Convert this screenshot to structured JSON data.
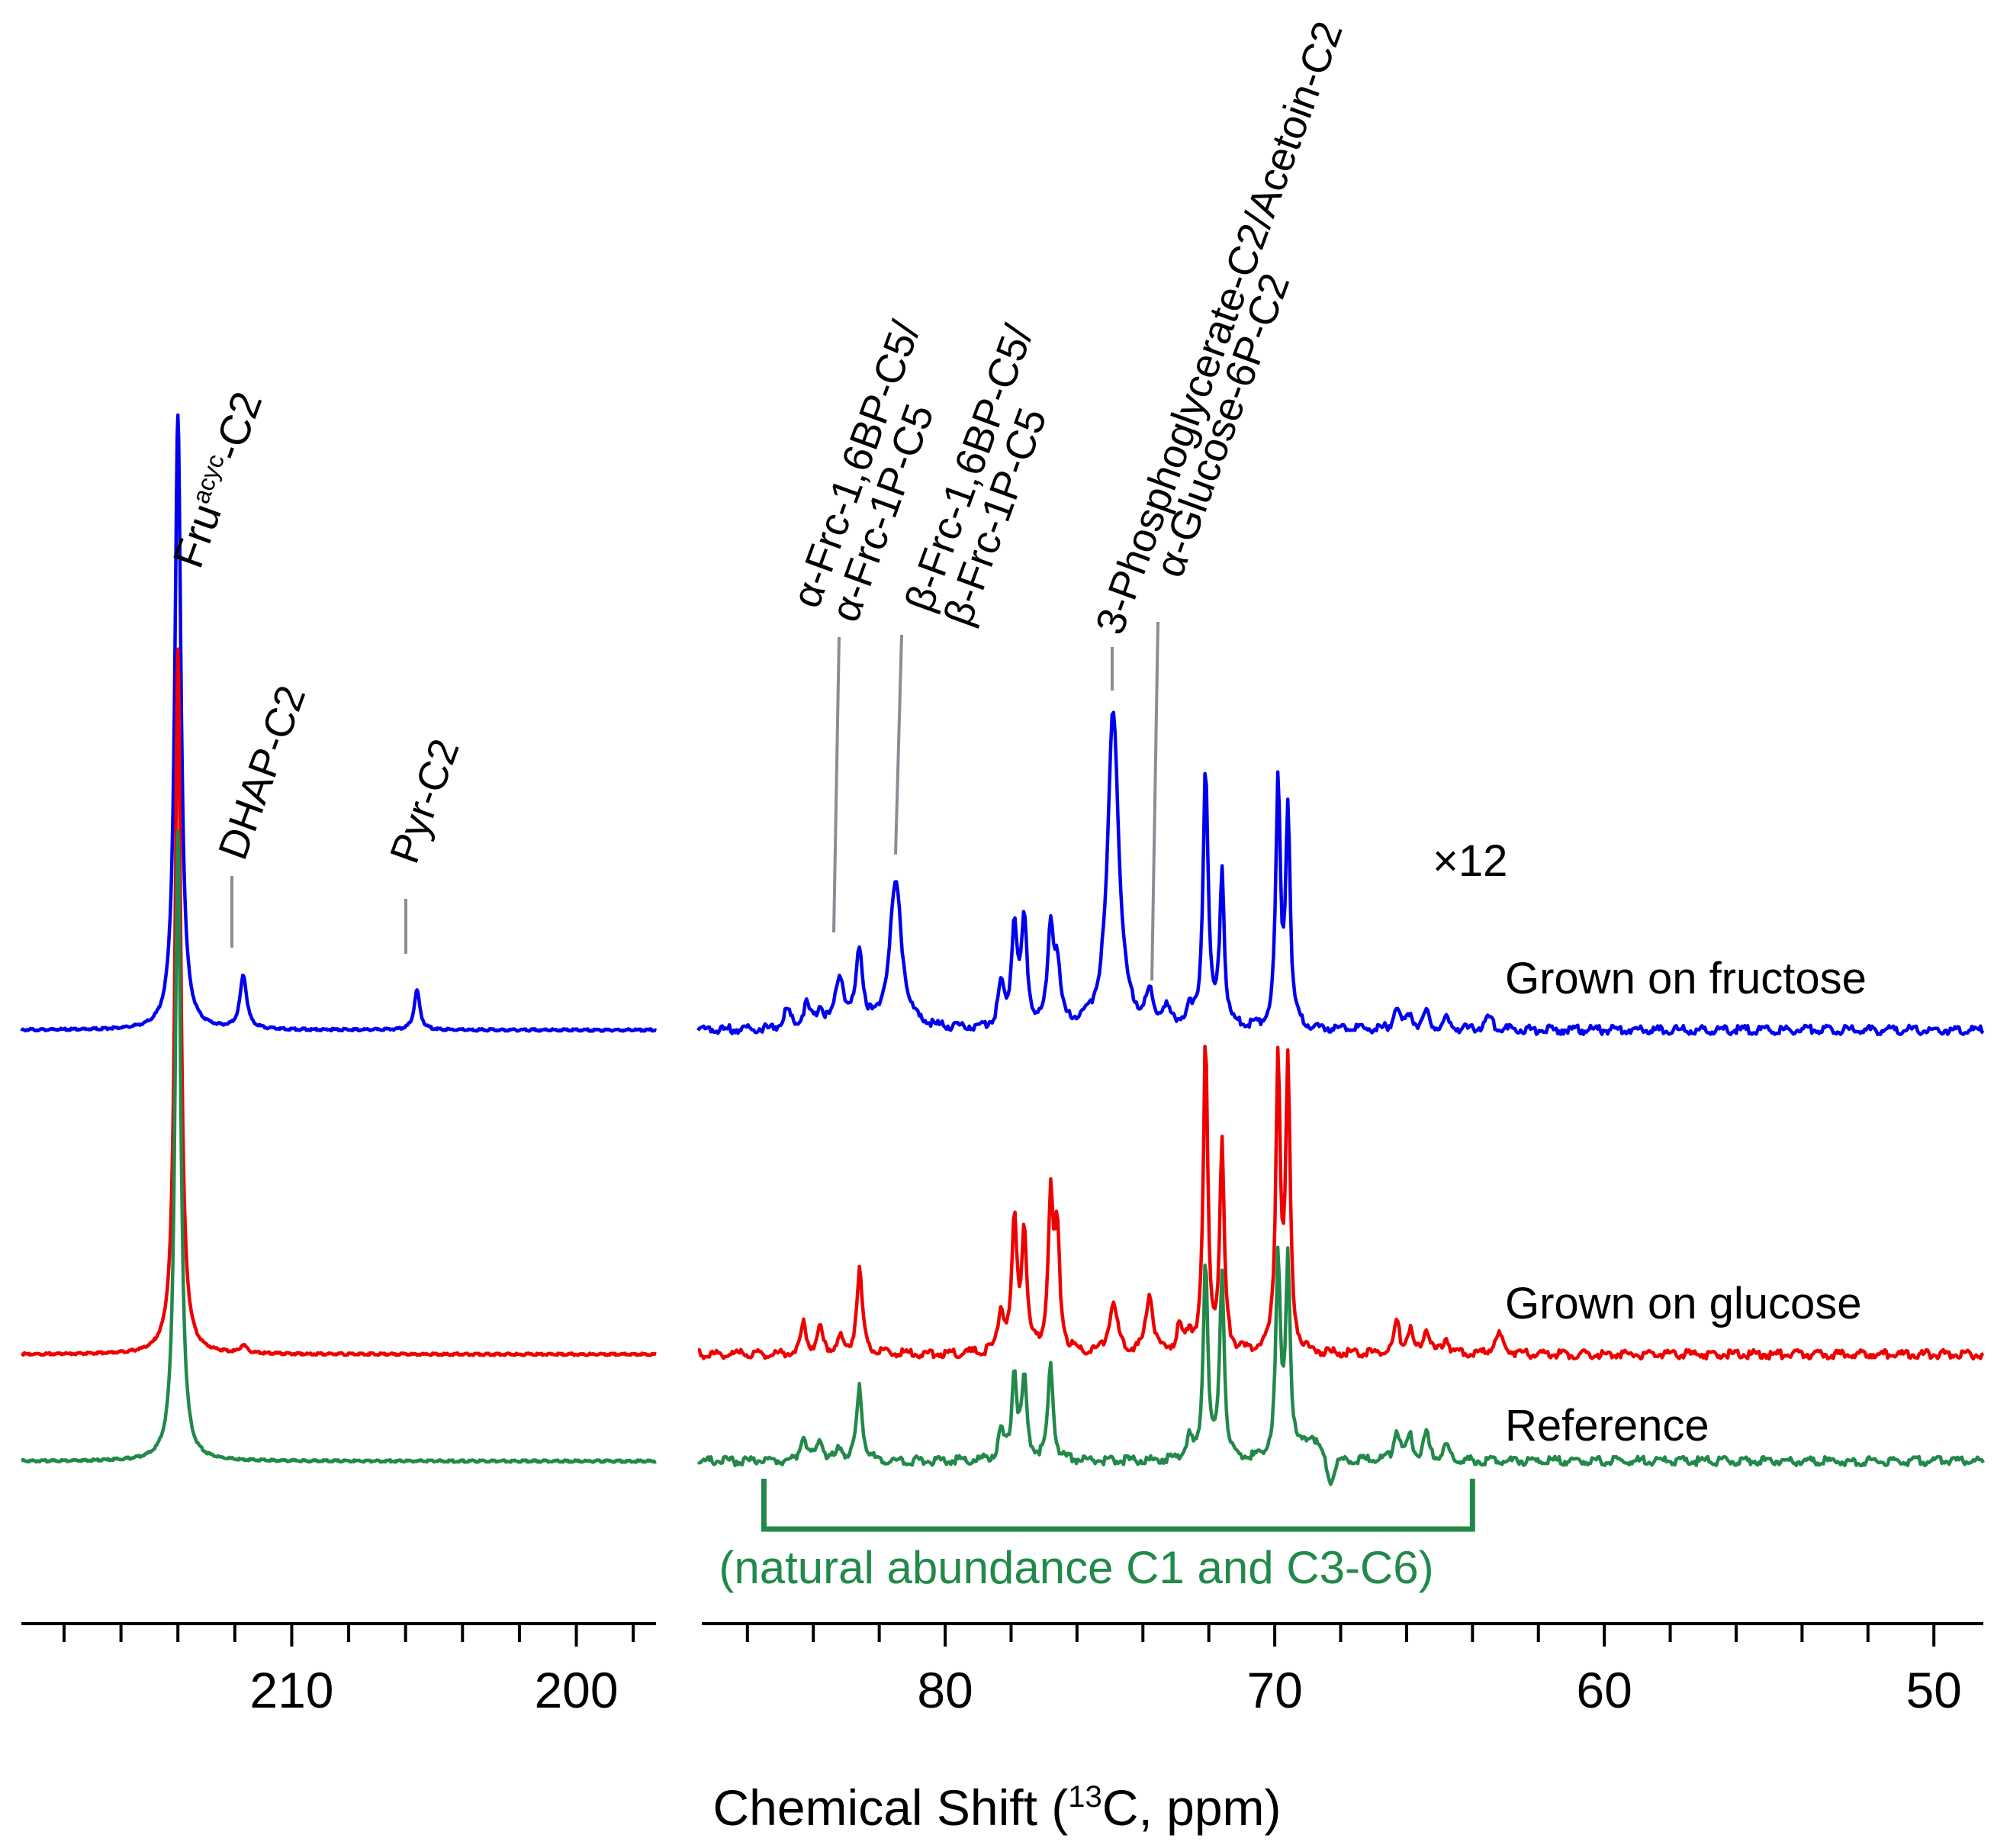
{
  "chart_data": {
    "type": "line",
    "title": "",
    "xlabel": "Chemical Shift",
    "xlabel_parts": {
      "prefix": "Chemical Shift (",
      "sup": "13",
      "suffix": "C, ppm)"
    },
    "ylabel": "",
    "x_reversed": true,
    "grid": false,
    "panels": [
      {
        "name": "left",
        "xlim": [
          219.5,
          197.2
        ],
        "tick_labels": [
          "210",
          "200"
        ],
        "tick_values": [
          210,
          200
        ]
      },
      {
        "name": "right",
        "xlim": [
          87.5,
          48.5
        ],
        "tick_labels": [
          "80",
          "70",
          "60",
          "50"
        ],
        "tick_values": [
          80,
          70,
          60,
          50
        ]
      }
    ],
    "scale_note": "×12",
    "series": [
      {
        "name": "Grown on fructose",
        "color": "#0000ee",
        "baseline": 1350,
        "left_peaks": [
          [
            214.0,
            805,
            0.13
          ],
          [
            211.7,
            70,
            0.14
          ],
          [
            205.6,
            52,
            0.12
          ]
        ],
        "right_peaks": [
          [
            84.8,
            25,
            0.12
          ],
          [
            84.2,
            30,
            0.12
          ],
          [
            83.8,
            25,
            0.1
          ],
          [
            83.2,
            65,
            0.16
          ],
          [
            82.6,
            100,
            0.12
          ],
          [
            81.5,
            190,
            0.22
          ],
          [
            78.3,
            50,
            0.11
          ],
          [
            77.9,
            135,
            0.1
          ],
          [
            77.6,
            135,
            0.1
          ],
          [
            76.8,
            130,
            0.1
          ],
          [
            76.6,
            75,
            0.1
          ],
          [
            74.9,
            420,
            0.2
          ],
          [
            73.8,
            40,
            0.12
          ],
          [
            73.3,
            25,
            0.12
          ],
          [
            72.6,
            20,
            0.12
          ],
          [
            72.1,
            340,
            0.09
          ],
          [
            71.6,
            205,
            0.08
          ],
          [
            69.9,
            320,
            0.08
          ],
          [
            69.6,
            285,
            0.08
          ],
          [
            66.3,
            30,
            0.1
          ],
          [
            65.9,
            20,
            0.1
          ],
          [
            65.4,
            25,
            0.1
          ],
          [
            64.8,
            15,
            0.1
          ],
          [
            63.5,
            15,
            0.15
          ]
        ]
      },
      {
        "name": "Grown on glucose",
        "color": "#ee0000",
        "baseline": 1775,
        "left_peaks": [
          [
            214.0,
            925,
            0.12
          ],
          [
            211.7,
            10,
            0.14
          ]
        ],
        "right_peaks": [
          [
            84.3,
            40,
            0.1
          ],
          [
            83.8,
            35,
            0.1
          ],
          [
            83.2,
            20,
            0.1
          ],
          [
            82.6,
            110,
            0.1
          ],
          [
            78.3,
            55,
            0.1
          ],
          [
            77.9,
            170,
            0.09
          ],
          [
            77.6,
            160,
            0.09
          ],
          [
            76.8,
            195,
            0.09
          ],
          [
            76.6,
            150,
            0.09
          ],
          [
            74.9,
            65,
            0.15
          ],
          [
            73.8,
            80,
            0.12
          ],
          [
            72.9,
            30,
            0.1
          ],
          [
            72.6,
            25,
            0.1
          ],
          [
            72.1,
            405,
            0.08
          ],
          [
            71.6,
            270,
            0.08
          ],
          [
            69.9,
            385,
            0.08
          ],
          [
            69.6,
            370,
            0.08
          ],
          [
            66.3,
            40,
            0.1
          ],
          [
            65.9,
            30,
            0.1
          ],
          [
            65.4,
            35,
            0.1
          ],
          [
            64.8,
            20,
            0.1
          ],
          [
            63.2,
            25,
            0.15
          ]
        ]
      },
      {
        "name": "Reference",
        "color": "#22894a",
        "baseline": 1915,
        "left_peaks": [
          [
            214.0,
            825,
            0.12
          ]
        ],
        "right_peaks": [
          [
            84.3,
            35,
            0.1
          ],
          [
            83.8,
            30,
            0.1
          ],
          [
            83.2,
            15,
            0.1
          ],
          [
            82.6,
            95,
            0.1
          ],
          [
            78.3,
            35,
            0.1
          ],
          [
            77.9,
            115,
            0.09
          ],
          [
            77.6,
            105,
            0.09
          ],
          [
            76.8,
            125,
            0.09
          ],
          [
            72.6,
            30,
            0.1
          ],
          [
            72.1,
            265,
            0.08
          ],
          [
            71.6,
            245,
            0.08
          ],
          [
            69.9,
            260,
            0.08
          ],
          [
            69.6,
            260,
            0.08
          ],
          [
            68.9,
            30,
            0.3
          ],
          [
            68.3,
            -35,
            0.12
          ],
          [
            66.3,
            40,
            0.1
          ],
          [
            65.9,
            30,
            0.1
          ],
          [
            65.4,
            35,
            0.1
          ],
          [
            64.8,
            20,
            0.1
          ]
        ]
      }
    ],
    "peak_annotations": [
      {
        "panel": "left",
        "lines": [
          "Fru",
          "acyc",
          "-C2"
        ],
        "superscript": true,
        "ppm": 214.0
      },
      {
        "panel": "left",
        "lines": [
          "DHAP-C2"
        ],
        "ppm": 211.7
      },
      {
        "panel": "left",
        "lines": [
          "Pyr-C2"
        ],
        "ppm": 205.6
      },
      {
        "panel": "right",
        "lines": [
          "α-Frc-1,6BP-C5/",
          "α-Frc-1P-C5"
        ],
        "ppm": 83.4
      },
      {
        "panel": "right",
        "lines": [
          "β-Frc-1,6BP-C5/",
          "β-Frc-1P-C5"
        ],
        "ppm": 81.5
      },
      {
        "panel": "right",
        "lines": [
          "3-Phosphoglycerate-C2/Acetoin-C2"
        ],
        "ppm": 75.0
      },
      {
        "panel": "right",
        "lines": [
          "α-Glucose-6P-C2"
        ],
        "ppm": 73.8
      }
    ],
    "bracket": {
      "label": "(natural abundance C1 and C3-C6)",
      "from_ppm": 85.5,
      "to_ppm": 64.0
    }
  }
}
